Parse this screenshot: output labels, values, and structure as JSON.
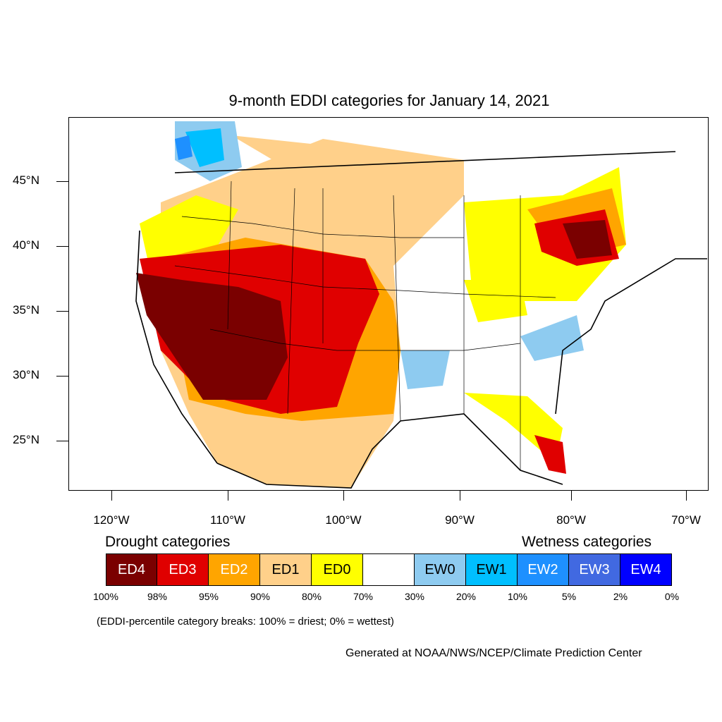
{
  "title": "9-month EDDI categories for January 14, 2021",
  "axes": {
    "lat_labels": [
      "45°N",
      "40°N",
      "35°N",
      "30°N",
      "25°N"
    ],
    "lon_labels": [
      "120°W",
      "110°W",
      "100°W",
      "90°W",
      "80°W",
      "70°W"
    ]
  },
  "legend": {
    "drought_heading": "Drought categories",
    "wetness_heading": "Wetness categories",
    "categories": [
      {
        "label": "ED4",
        "color": "#7a0000",
        "text_color": "#ffffff"
      },
      {
        "label": "ED3",
        "color": "#e00000",
        "text_color": "#ffffff"
      },
      {
        "label": "ED2",
        "color": "#ffa500",
        "text_color": "#ffffff"
      },
      {
        "label": "ED1",
        "color": "#ffd08a",
        "text_color": "#000000"
      },
      {
        "label": "ED0",
        "color": "#ffff00",
        "text_color": "#000000"
      },
      {
        "label": "",
        "color": "#ffffff",
        "text_color": "#000000"
      },
      {
        "label": "EW0",
        "color": "#8ecbf0",
        "text_color": "#000000"
      },
      {
        "label": "EW1",
        "color": "#00bfff",
        "text_color": "#000000"
      },
      {
        "label": "EW2",
        "color": "#1e90ff",
        "text_color": "#ffffff"
      },
      {
        "label": "EW3",
        "color": "#4169e1",
        "text_color": "#ffffff"
      },
      {
        "label": "EW4",
        "color": "#0000ff",
        "text_color": "#ffffff"
      }
    ],
    "percentiles": [
      "100%",
      "98%",
      "95%",
      "90%",
      "80%",
      "70%",
      "30%",
      "20%",
      "10%",
      "5%",
      "2%",
      "0%"
    ]
  },
  "note": "(EDDI-percentile category breaks: 100% = driest; 0% = wettest)",
  "credit": "Generated at NOAA/NWS/NCEP/Climate Prediction Center"
}
